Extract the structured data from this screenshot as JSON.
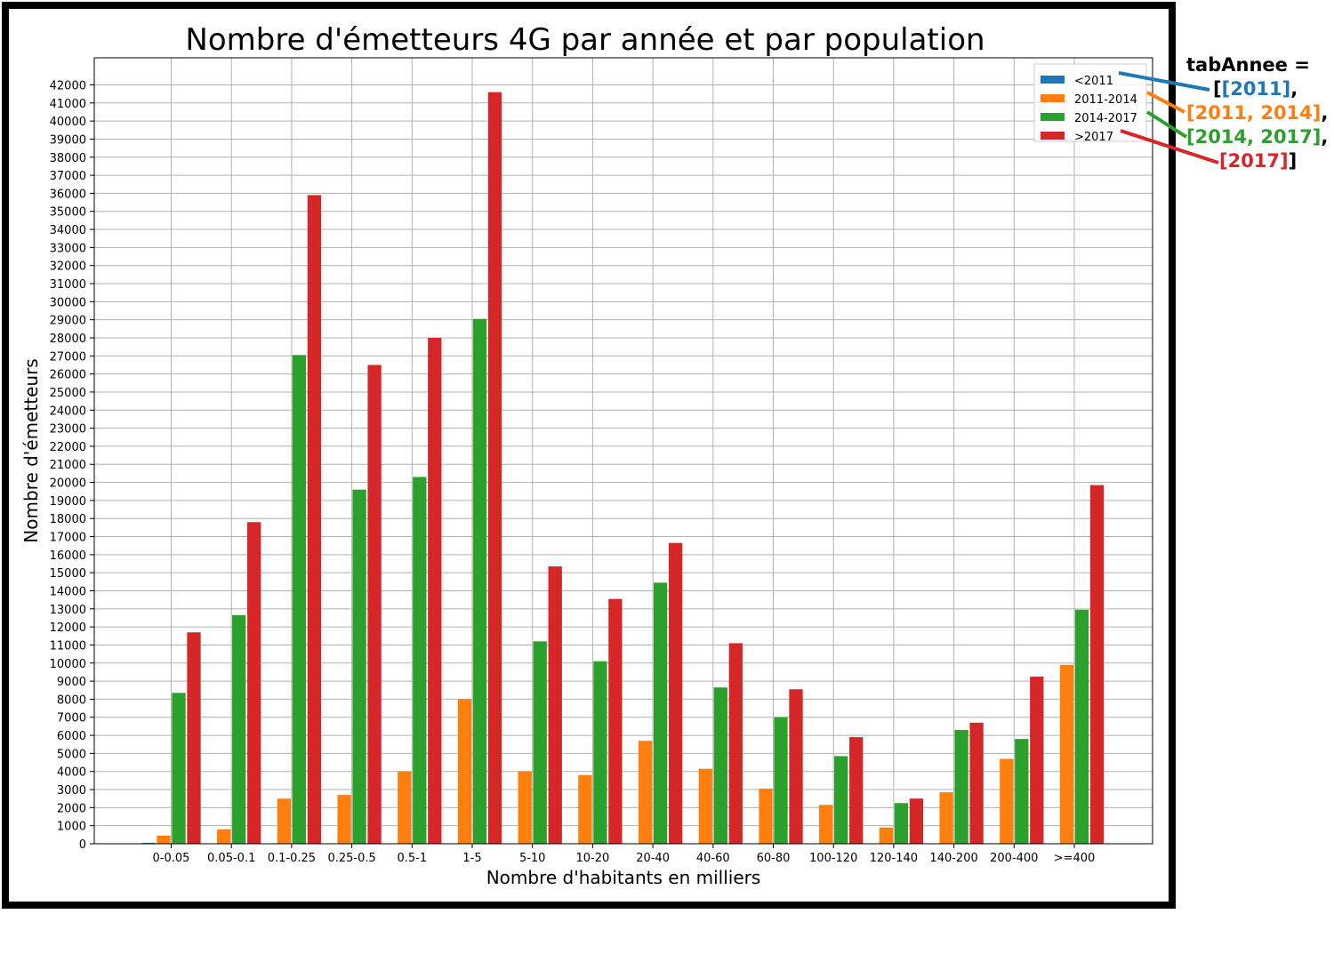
{
  "colors": {
    "s2011": "#1f77b4",
    "s2011_2014": "#ff7f0e",
    "s2014_2017": "#2ca02c",
    "s2017": "#d62728",
    "grid": "#b0b0b0",
    "frame": "#000000"
  },
  "chart_data": {
    "type": "bar",
    "title": "Nombre d'émetteurs 4G par année et par population",
    "xlabel": "Nombre d'habitants en milliers",
    "ylabel": "Nombre d'émetteurs",
    "ylim": [
      0,
      43500
    ],
    "ytick_step": 1000,
    "ytick_max": 42000,
    "grid": true,
    "legend_position": "top-right",
    "categories": [
      "0-0.05",
      "0.05-0.1",
      "0.1-0.25",
      "0.25-0.5",
      "0.5-1",
      "1-5",
      "5-10",
      "10-20",
      "20-40",
      "40-60",
      "60-80",
      "100-120",
      "120-140",
      "140-200",
      "200-400",
      ">=400"
    ],
    "series": [
      {
        "name": "<2011",
        "color": "#1f77b4",
        "values": [
          50,
          0,
          0,
          0,
          0,
          0,
          0,
          0,
          0,
          0,
          0,
          0,
          0,
          0,
          0,
          0
        ]
      },
      {
        "name": "2011-2014",
        "color": "#ff7f0e",
        "values": [
          450,
          800,
          2500,
          2700,
          4000,
          8000,
          4000,
          3800,
          5700,
          4150,
          3050,
          2150,
          900,
          2850,
          4700,
          9900
        ]
      },
      {
        "name": "2014-2017",
        "color": "#2ca02c",
        "values": [
          8350,
          12650,
          27050,
          19600,
          20300,
          29050,
          11200,
          10100,
          14450,
          8650,
          7000,
          4850,
          2250,
          6300,
          5800,
          12950
        ]
      },
      {
        "name": ">2017",
        "color": "#d62728",
        "values": [
          11700,
          17800,
          35900,
          26500,
          28000,
          41600,
          15350,
          13550,
          16650,
          11100,
          8550,
          5900,
          2500,
          6700,
          9250,
          19850
        ]
      }
    ]
  },
  "annotation": {
    "label": "tabAnnee =",
    "open": "[",
    "item1": "[2011]",
    "item2": "[2011, 2014]",
    "item3": "[2014, 2017]",
    "item4": "[2017]",
    "comma": ",",
    "close": "]"
  }
}
